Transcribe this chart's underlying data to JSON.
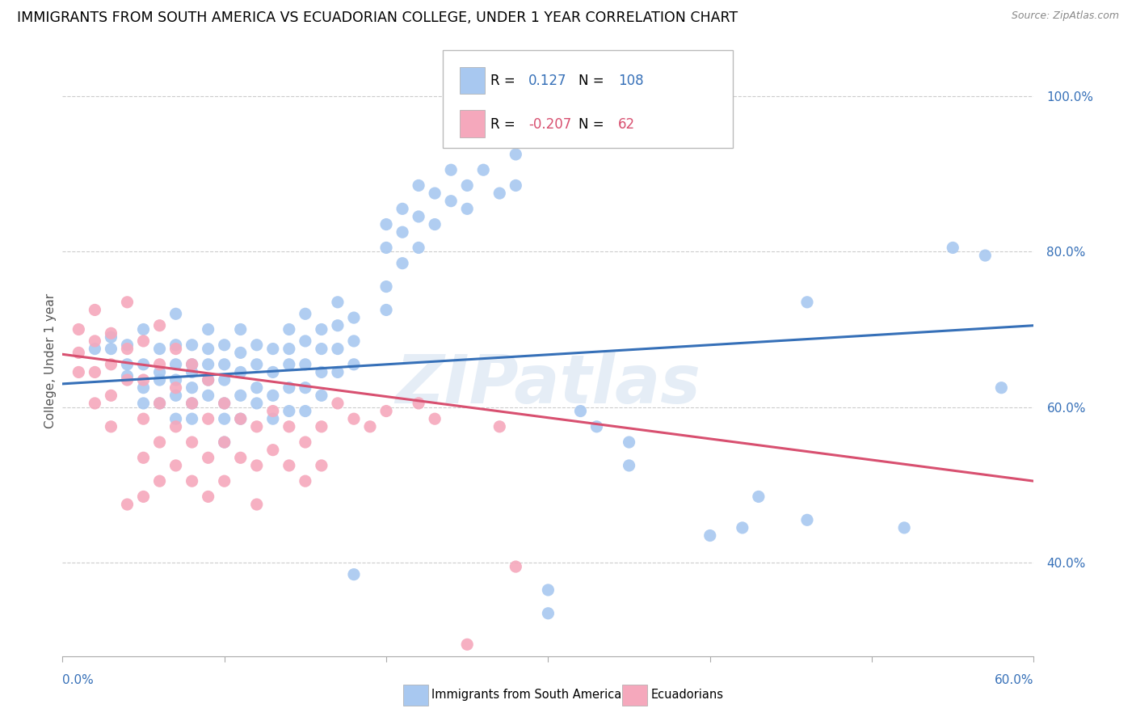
{
  "title": "IMMIGRANTS FROM SOUTH AMERICA VS ECUADORIAN COLLEGE, UNDER 1 YEAR CORRELATION CHART",
  "source": "Source: ZipAtlas.com",
  "ylabel": "College, Under 1 year",
  "xlim": [
    0.0,
    0.6
  ],
  "ylim": [
    0.28,
    1.04
  ],
  "watermark": "ZIPatlas",
  "legend_label_blue": "Immigrants from South America",
  "legend_label_pink": "Ecuadorians",
  "R_blue": "0.127",
  "N_blue": "108",
  "R_pink": "-0.207",
  "N_pink": "62",
  "blue_color": "#A8C8F0",
  "pink_color": "#F5A8BC",
  "blue_line_color": "#3670B8",
  "pink_line_color": "#D85070",
  "blue_scatter": [
    [
      0.02,
      0.675
    ],
    [
      0.03,
      0.675
    ],
    [
      0.03,
      0.69
    ],
    [
      0.04,
      0.68
    ],
    [
      0.04,
      0.655
    ],
    [
      0.04,
      0.64
    ],
    [
      0.05,
      0.7
    ],
    [
      0.05,
      0.655
    ],
    [
      0.05,
      0.625
    ],
    [
      0.05,
      0.605
    ],
    [
      0.06,
      0.675
    ],
    [
      0.06,
      0.645
    ],
    [
      0.06,
      0.635
    ],
    [
      0.06,
      0.605
    ],
    [
      0.07,
      0.72
    ],
    [
      0.07,
      0.68
    ],
    [
      0.07,
      0.655
    ],
    [
      0.07,
      0.635
    ],
    [
      0.07,
      0.615
    ],
    [
      0.07,
      0.585
    ],
    [
      0.08,
      0.68
    ],
    [
      0.08,
      0.655
    ],
    [
      0.08,
      0.645
    ],
    [
      0.08,
      0.625
    ],
    [
      0.08,
      0.605
    ],
    [
      0.08,
      0.585
    ],
    [
      0.09,
      0.7
    ],
    [
      0.09,
      0.675
    ],
    [
      0.09,
      0.655
    ],
    [
      0.09,
      0.635
    ],
    [
      0.09,
      0.615
    ],
    [
      0.1,
      0.68
    ],
    [
      0.1,
      0.655
    ],
    [
      0.1,
      0.635
    ],
    [
      0.1,
      0.605
    ],
    [
      0.1,
      0.585
    ],
    [
      0.1,
      0.555
    ],
    [
      0.11,
      0.7
    ],
    [
      0.11,
      0.67
    ],
    [
      0.11,
      0.645
    ],
    [
      0.11,
      0.615
    ],
    [
      0.11,
      0.585
    ],
    [
      0.12,
      0.68
    ],
    [
      0.12,
      0.655
    ],
    [
      0.12,
      0.625
    ],
    [
      0.12,
      0.605
    ],
    [
      0.13,
      0.675
    ],
    [
      0.13,
      0.645
    ],
    [
      0.13,
      0.615
    ],
    [
      0.13,
      0.585
    ],
    [
      0.14,
      0.7
    ],
    [
      0.14,
      0.675
    ],
    [
      0.14,
      0.655
    ],
    [
      0.14,
      0.625
    ],
    [
      0.14,
      0.595
    ],
    [
      0.15,
      0.72
    ],
    [
      0.15,
      0.685
    ],
    [
      0.15,
      0.655
    ],
    [
      0.15,
      0.625
    ],
    [
      0.15,
      0.595
    ],
    [
      0.16,
      0.7
    ],
    [
      0.16,
      0.675
    ],
    [
      0.16,
      0.645
    ],
    [
      0.16,
      0.615
    ],
    [
      0.17,
      0.735
    ],
    [
      0.17,
      0.705
    ],
    [
      0.17,
      0.675
    ],
    [
      0.17,
      0.645
    ],
    [
      0.18,
      0.715
    ],
    [
      0.18,
      0.685
    ],
    [
      0.18,
      0.655
    ],
    [
      0.18,
      0.385
    ],
    [
      0.2,
      0.835
    ],
    [
      0.2,
      0.805
    ],
    [
      0.2,
      0.755
    ],
    [
      0.2,
      0.725
    ],
    [
      0.21,
      0.855
    ],
    [
      0.21,
      0.825
    ],
    [
      0.21,
      0.785
    ],
    [
      0.22,
      0.885
    ],
    [
      0.22,
      0.845
    ],
    [
      0.22,
      0.805
    ],
    [
      0.23,
      0.875
    ],
    [
      0.23,
      0.835
    ],
    [
      0.24,
      0.905
    ],
    [
      0.24,
      0.865
    ],
    [
      0.25,
      0.885
    ],
    [
      0.25,
      0.855
    ],
    [
      0.26,
      0.905
    ],
    [
      0.27,
      0.875
    ],
    [
      0.28,
      0.925
    ],
    [
      0.28,
      0.885
    ],
    [
      0.3,
      0.365
    ],
    [
      0.3,
      0.335
    ],
    [
      0.32,
      0.595
    ],
    [
      0.33,
      0.575
    ],
    [
      0.35,
      0.555
    ],
    [
      0.35,
      0.525
    ],
    [
      0.4,
      0.435
    ],
    [
      0.42,
      0.445
    ],
    [
      0.43,
      0.485
    ],
    [
      0.46,
      0.735
    ],
    [
      0.46,
      0.455
    ],
    [
      0.52,
      0.445
    ],
    [
      0.55,
      0.805
    ],
    [
      0.57,
      0.795
    ],
    [
      0.58,
      0.625
    ]
  ],
  "pink_scatter": [
    [
      0.01,
      0.7
    ],
    [
      0.01,
      0.67
    ],
    [
      0.01,
      0.645
    ],
    [
      0.02,
      0.725
    ],
    [
      0.02,
      0.685
    ],
    [
      0.02,
      0.645
    ],
    [
      0.02,
      0.605
    ],
    [
      0.03,
      0.695
    ],
    [
      0.03,
      0.655
    ],
    [
      0.03,
      0.615
    ],
    [
      0.03,
      0.575
    ],
    [
      0.04,
      0.735
    ],
    [
      0.04,
      0.675
    ],
    [
      0.04,
      0.635
    ],
    [
      0.04,
      0.475
    ],
    [
      0.05,
      0.685
    ],
    [
      0.05,
      0.635
    ],
    [
      0.05,
      0.585
    ],
    [
      0.05,
      0.535
    ],
    [
      0.05,
      0.485
    ],
    [
      0.06,
      0.705
    ],
    [
      0.06,
      0.655
    ],
    [
      0.06,
      0.605
    ],
    [
      0.06,
      0.555
    ],
    [
      0.06,
      0.505
    ],
    [
      0.07,
      0.675
    ],
    [
      0.07,
      0.625
    ],
    [
      0.07,
      0.575
    ],
    [
      0.07,
      0.525
    ],
    [
      0.08,
      0.655
    ],
    [
      0.08,
      0.605
    ],
    [
      0.08,
      0.555
    ],
    [
      0.08,
      0.505
    ],
    [
      0.09,
      0.635
    ],
    [
      0.09,
      0.585
    ],
    [
      0.09,
      0.535
    ],
    [
      0.09,
      0.485
    ],
    [
      0.1,
      0.605
    ],
    [
      0.1,
      0.555
    ],
    [
      0.1,
      0.505
    ],
    [
      0.11,
      0.585
    ],
    [
      0.11,
      0.535
    ],
    [
      0.12,
      0.575
    ],
    [
      0.12,
      0.525
    ],
    [
      0.12,
      0.475
    ],
    [
      0.13,
      0.595
    ],
    [
      0.13,
      0.545
    ],
    [
      0.14,
      0.575
    ],
    [
      0.14,
      0.525
    ],
    [
      0.15,
      0.555
    ],
    [
      0.15,
      0.505
    ],
    [
      0.16,
      0.575
    ],
    [
      0.16,
      0.525
    ],
    [
      0.17,
      0.605
    ],
    [
      0.18,
      0.585
    ],
    [
      0.19,
      0.575
    ],
    [
      0.2,
      0.595
    ],
    [
      0.22,
      0.605
    ],
    [
      0.23,
      0.585
    ],
    [
      0.25,
      0.295
    ],
    [
      0.27,
      0.575
    ],
    [
      0.28,
      0.395
    ]
  ],
  "blue_trend_x": [
    0.0,
    0.6
  ],
  "blue_trend_y": [
    0.63,
    0.705
  ],
  "pink_trend_x": [
    0.0,
    0.6
  ],
  "pink_trend_y": [
    0.668,
    0.505
  ],
  "ytick_vals": [
    0.4,
    0.6,
    0.8,
    1.0
  ],
  "ytick_labels": [
    "40.0%",
    "60.0%",
    "80.0%",
    "100.0%"
  ],
  "xtick_vals": [
    0.0,
    0.1,
    0.2,
    0.3,
    0.4,
    0.5,
    0.6
  ],
  "background_color": "#FFFFFF",
  "grid_color": "#CCCCCC"
}
